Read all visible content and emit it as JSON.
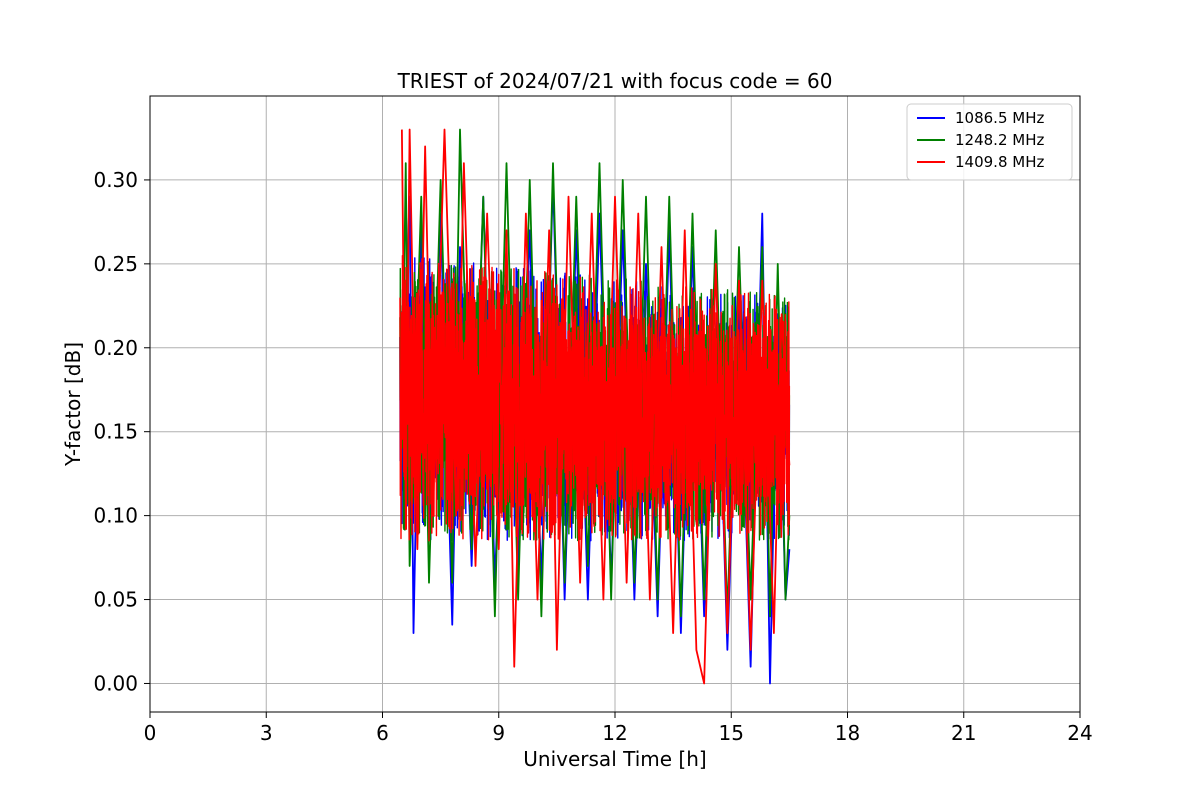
{
  "chart_data": {
    "type": "line",
    "title": "TRIEST of 2024/07/21 with focus code = 60",
    "xlabel": "Universal Time [h]",
    "ylabel": "Y-factor [dB]",
    "xlim": [
      0,
      24
    ],
    "ylim": [
      -0.017,
      0.35
    ],
    "xticks": [
      0,
      3,
      6,
      9,
      12,
      15,
      18,
      21,
      24
    ],
    "xtick_labels": [
      "0",
      "3",
      "6",
      "9",
      "12",
      "15",
      "18",
      "21",
      "24"
    ],
    "yticks": [
      0.0,
      0.05,
      0.1,
      0.15,
      0.2,
      0.25,
      0.3
    ],
    "ytick_labels": [
      "0.00",
      "0.05",
      "0.10",
      "0.15",
      "0.20",
      "0.25",
      "0.30"
    ],
    "grid": true,
    "legend_position": "top-right",
    "x_range_of_data": [
      6.45,
      16.5
    ],
    "series": [
      {
        "name": "1086.5 MHz",
        "color": "#0000ff",
        "points": [
          [
            6.5,
            0.16
          ],
          [
            6.7,
            0.29
          ],
          [
            6.8,
            0.03
          ],
          [
            7.0,
            0.27
          ],
          [
            7.2,
            0.09
          ],
          [
            7.5,
            0.28
          ],
          [
            7.8,
            0.035
          ],
          [
            8.0,
            0.26
          ],
          [
            8.3,
            0.07
          ],
          [
            8.6,
            0.29
          ],
          [
            8.9,
            0.06
          ],
          [
            9.2,
            0.25
          ],
          [
            9.5,
            0.07
          ],
          [
            9.8,
            0.27
          ],
          [
            10.1,
            0.06
          ],
          [
            10.4,
            0.3
          ],
          [
            10.7,
            0.05
          ],
          [
            11.0,
            0.27
          ],
          [
            11.3,
            0.05
          ],
          [
            11.6,
            0.28
          ],
          [
            11.9,
            0.06
          ],
          [
            12.2,
            0.27
          ],
          [
            12.5,
            0.05
          ],
          [
            12.8,
            0.25
          ],
          [
            13.1,
            0.04
          ],
          [
            13.4,
            0.27
          ],
          [
            13.7,
            0.03
          ],
          [
            14.0,
            0.26
          ],
          [
            14.3,
            0.04
          ],
          [
            14.6,
            0.25
          ],
          [
            14.9,
            0.02
          ],
          [
            15.2,
            0.23
          ],
          [
            15.5,
            0.01
          ],
          [
            15.8,
            0.28
          ],
          [
            16.0,
            0.0
          ],
          [
            16.2,
            0.22
          ],
          [
            16.4,
            0.05
          ],
          [
            16.5,
            0.08
          ]
        ]
      },
      {
        "name": "1248.2 MHz",
        "color": "#008000",
        "points": [
          [
            6.5,
            0.14
          ],
          [
            6.6,
            0.31
          ],
          [
            6.7,
            0.07
          ],
          [
            7.0,
            0.29
          ],
          [
            7.2,
            0.06
          ],
          [
            7.5,
            0.3
          ],
          [
            7.8,
            0.06
          ],
          [
            8.0,
            0.33
          ],
          [
            8.3,
            0.08
          ],
          [
            8.6,
            0.29
          ],
          [
            8.9,
            0.04
          ],
          [
            9.2,
            0.31
          ],
          [
            9.5,
            0.05
          ],
          [
            9.8,
            0.3
          ],
          [
            10.1,
            0.04
          ],
          [
            10.4,
            0.31
          ],
          [
            10.7,
            0.06
          ],
          [
            11.0,
            0.29
          ],
          [
            11.3,
            0.07
          ],
          [
            11.6,
            0.31
          ],
          [
            11.9,
            0.05
          ],
          [
            12.2,
            0.3
          ],
          [
            12.5,
            0.06
          ],
          [
            12.8,
            0.29
          ],
          [
            13.1,
            0.05
          ],
          [
            13.4,
            0.29
          ],
          [
            13.7,
            0.04
          ],
          [
            14.0,
            0.28
          ],
          [
            14.3,
            0.05
          ],
          [
            14.6,
            0.27
          ],
          [
            14.9,
            0.04
          ],
          [
            15.2,
            0.26
          ],
          [
            15.5,
            0.05
          ],
          [
            15.8,
            0.26
          ],
          [
            16.0,
            0.04
          ],
          [
            16.2,
            0.25
          ],
          [
            16.4,
            0.05
          ],
          [
            16.5,
            0.1
          ]
        ]
      },
      {
        "name": "1409.8 MHz",
        "color": "#ff0000",
        "points": [
          [
            6.5,
            0.33
          ],
          [
            6.6,
            0.11
          ],
          [
            6.7,
            0.33
          ],
          [
            6.9,
            0.08
          ],
          [
            7.1,
            0.32
          ],
          [
            7.3,
            0.1
          ],
          [
            7.6,
            0.33
          ],
          [
            7.9,
            0.1
          ],
          [
            8.1,
            0.31
          ],
          [
            8.4,
            0.07
          ],
          [
            8.7,
            0.28
          ],
          [
            9.0,
            0.08
          ],
          [
            9.2,
            0.27
          ],
          [
            9.4,
            0.01
          ],
          [
            9.7,
            0.28
          ],
          [
            10.0,
            0.05
          ],
          [
            10.3,
            0.27
          ],
          [
            10.5,
            0.02
          ],
          [
            10.8,
            0.29
          ],
          [
            11.1,
            0.06
          ],
          [
            11.4,
            0.28
          ],
          [
            11.7,
            0.05
          ],
          [
            12.0,
            0.29
          ],
          [
            12.3,
            0.06
          ],
          [
            12.6,
            0.28
          ],
          [
            12.9,
            0.05
          ],
          [
            13.2,
            0.26
          ],
          [
            13.5,
            0.03
          ],
          [
            13.8,
            0.27
          ],
          [
            14.1,
            0.02
          ],
          [
            14.3,
            0.0
          ],
          [
            14.6,
            0.25
          ],
          [
            14.9,
            0.03
          ],
          [
            15.2,
            0.24
          ],
          [
            15.5,
            0.02
          ],
          [
            15.8,
            0.24
          ],
          [
            16.1,
            0.03
          ],
          [
            16.3,
            0.22
          ],
          [
            16.5,
            0.13
          ]
        ]
      }
    ]
  }
}
